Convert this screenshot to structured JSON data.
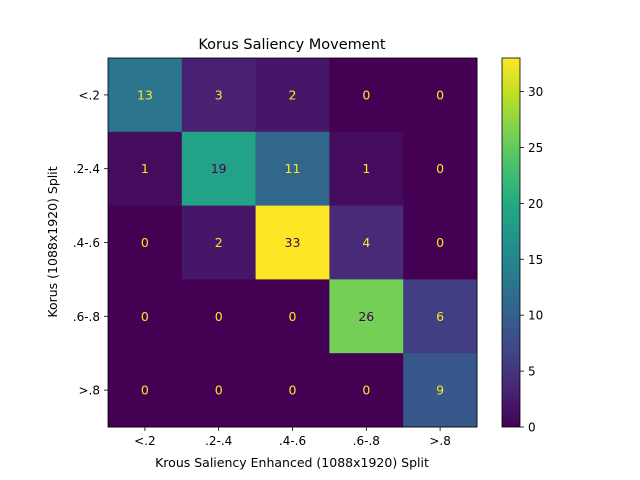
{
  "chart_data": {
    "type": "heatmap",
    "title": "Korus Saliency Movement",
    "xlabel": "Krous Saliency Enhanced (1088x1920) Split",
    "ylabel": "Korus (1088x1920) Split",
    "x_categories": [
      "<.2",
      ".2-.4",
      ".4-.6",
      ".6-.8",
      ">.8"
    ],
    "y_categories": [
      "<.2",
      ".2-.4",
      ".4-.6",
      ".6-.8",
      ">.8"
    ],
    "values": [
      [
        13,
        3,
        2,
        0,
        0
      ],
      [
        1,
        19,
        11,
        1,
        0
      ],
      [
        0,
        2,
        33,
        4,
        0
      ],
      [
        0,
        0,
        0,
        26,
        6
      ],
      [
        0,
        0,
        0,
        0,
        9
      ]
    ],
    "colorbar": {
      "min": 0,
      "max": 33,
      "ticks": [
        0,
        5,
        10,
        15,
        20,
        25,
        30
      ]
    },
    "colormap": "viridis",
    "text_color_dark": "#fde725",
    "text_color_light": "#440154"
  }
}
